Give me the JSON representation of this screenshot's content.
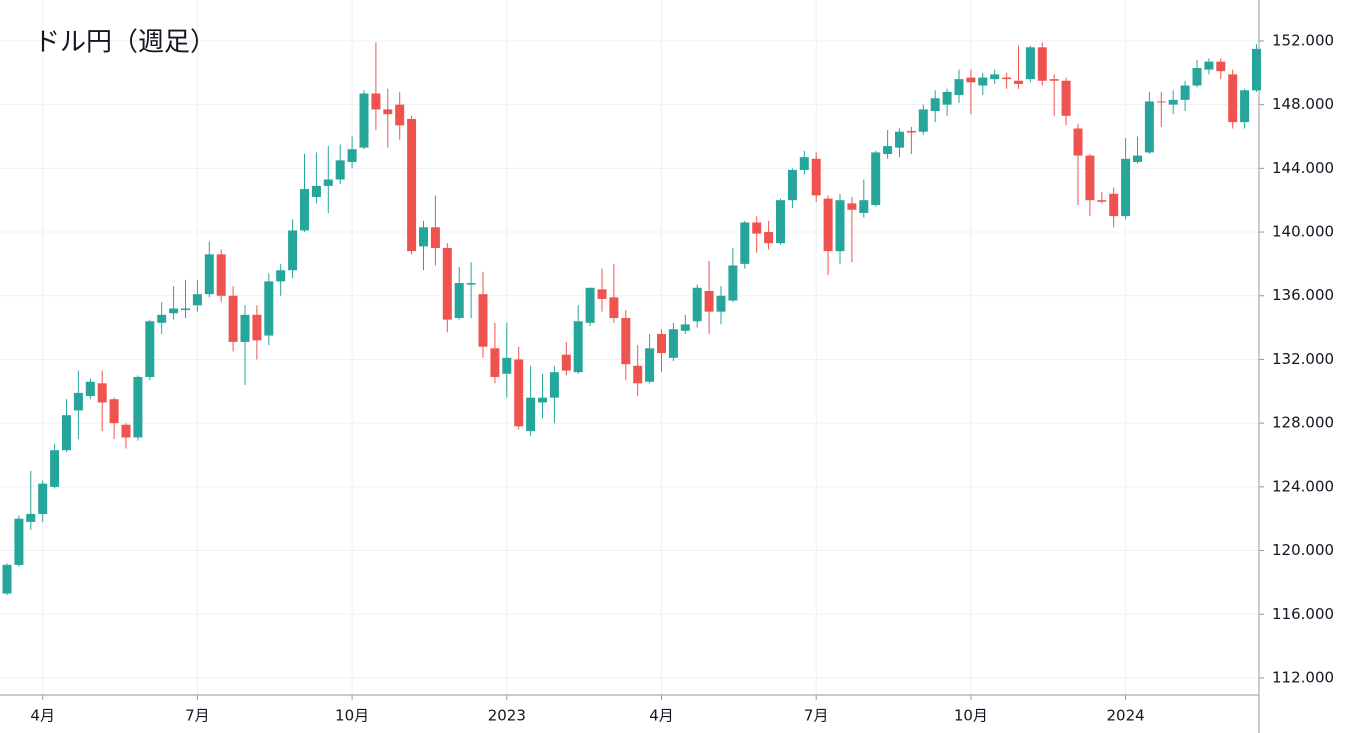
{
  "chart_data": {
    "type": "candlestick",
    "title": "ドル円（週足）",
    "categories": [
      null,
      null,
      null,
      "4月",
      null,
      null,
      null,
      null,
      null,
      null,
      null,
      null,
      null,
      null,
      null,
      null,
      "7月",
      null,
      null,
      null,
      null,
      null,
      null,
      null,
      null,
      null,
      null,
      null,
      null,
      "10月",
      null,
      null,
      null,
      null,
      null,
      null,
      null,
      null,
      null,
      null,
      null,
      null,
      "2023",
      null,
      null,
      null,
      null,
      null,
      null,
      null,
      null,
      null,
      null,
      null,
      null,
      "4月",
      null,
      null,
      null,
      null,
      null,
      null,
      null,
      null,
      null,
      null,
      null,
      null,
      "7月",
      null,
      null,
      null,
      null,
      null,
      null,
      null,
      null,
      null,
      null,
      null,
      null,
      "10月",
      null,
      null,
      null,
      null,
      null,
      null,
      null,
      null,
      null,
      null,
      null,
      null,
      "2024",
      null,
      null,
      null,
      null,
      null,
      null,
      null,
      null,
      null,
      null,
      null
    ],
    "open": [
      117.3,
      119.1,
      121.8,
      122.3,
      124.0,
      126.3,
      128.8,
      129.7,
      130.5,
      129.5,
      127.9,
      127.1,
      130.9,
      134.3,
      134.9,
      135.1,
      135.4,
      136.1,
      138.6,
      136.0,
      133.1,
      134.8,
      133.5,
      136.9,
      137.6,
      140.1,
      142.2,
      142.9,
      143.3,
      144.4,
      145.3,
      148.7,
      147.7,
      148.0,
      147.1,
      139.1,
      140.3,
      139.0,
      134.6,
      136.7,
      136.1,
      132.7,
      131.1,
      132.0,
      127.5,
      129.3,
      129.6,
      132.3,
      131.2,
      134.3,
      136.4,
      135.9,
      134.6,
      131.6,
      130.6,
      133.6,
      132.1,
      133.8,
      134.4,
      136.3,
      135.0,
      135.7,
      138.0,
      140.6,
      140.0,
      139.3,
      142.0,
      143.9,
      144.6,
      142.1,
      138.8,
      141.8,
      141.2,
      141.7,
      144.9,
      145.3,
      146.35,
      146.3,
      147.6,
      148.0,
      148.6,
      149.7,
      149.2,
      149.6,
      149.7,
      149.5,
      149.6,
      151.6,
      149.6,
      149.5,
      146.5,
      144.8,
      142.0,
      142.4,
      141.0,
      144.4,
      145.0,
      148.2,
      148.0,
      148.3,
      149.2,
      150.2,
      150.7,
      149.9,
      146.9,
      148.9
    ],
    "high": [
      119.2,
      122.2,
      125.0,
      124.4,
      126.7,
      129.5,
      131.3,
      130.8,
      131.3,
      129.6,
      128.0,
      131.0,
      134.5,
      135.6,
      136.6,
      137.0,
      137.0,
      139.4,
      138.9,
      136.6,
      135.4,
      135.4,
      137.4,
      138.0,
      140.8,
      144.9,
      145.0,
      145.4,
      145.5,
      146.0,
      148.9,
      151.9,
      149.0,
      148.8,
      147.3,
      140.7,
      142.3,
      139.3,
      137.8,
      138.1,
      137.5,
      134.3,
      134.3,
      132.8,
      131.6,
      131.1,
      131.6,
      133.1,
      135.4,
      136.5,
      137.7,
      138.0,
      135.1,
      132.9,
      133.6,
      133.9,
      134.3,
      134.8,
      136.7,
      138.2,
      136.6,
      139.0,
      140.7,
      141.0,
      140.7,
      142.1,
      144.0,
      145.1,
      145.0,
      142.3,
      142.4,
      142.2,
      143.3,
      145.1,
      146.4,
      146.5,
      146.6,
      148.0,
      148.9,
      149.0,
      150.2,
      150.2,
      150.0,
      150.2,
      150.0,
      151.7,
      151.7,
      151.9,
      149.9,
      149.7,
      146.8,
      144.9,
      142.5,
      142.8,
      145.9,
      146.0,
      148.8,
      148.8,
      148.9,
      149.5,
      150.8,
      150.9,
      150.9,
      150.2,
      149.0,
      151.8
    ],
    "low": [
      117.2,
      119.0,
      121.3,
      121.8,
      123.9,
      126.2,
      127.0,
      129.5,
      127.5,
      127.0,
      126.4,
      126.9,
      130.7,
      133.6,
      134.5,
      134.6,
      135.0,
      135.9,
      135.6,
      132.5,
      130.4,
      132.0,
      132.9,
      136.0,
      137.1,
      140.0,
      141.8,
      141.2,
      143.0,
      144.0,
      145.2,
      146.4,
      145.3,
      145.8,
      138.6,
      137.6,
      137.9,
      133.7,
      134.5,
      134.6,
      132.1,
      130.5,
      129.6,
      127.6,
      127.2,
      128.3,
      128.0,
      131.0,
      131.1,
      134.1,
      135.0,
      134.3,
      130.7,
      129.7,
      130.5,
      131.2,
      131.9,
      133.6,
      134.0,
      133.6,
      134.2,
      135.6,
      137.7,
      138.7,
      138.9,
      139.2,
      141.5,
      143.6,
      141.9,
      137.3,
      138.0,
      138.1,
      140.9,
      141.6,
      144.6,
      144.7,
      144.9,
      146.1,
      146.9,
      147.3,
      148.1,
      147.4,
      148.6,
      149.3,
      149.0,
      149.0,
      149.4,
      149.2,
      147.3,
      146.7,
      141.7,
      141.0,
      141.8,
      140.3,
      140.8,
      144.3,
      144.9,
      146.6,
      147.4,
      147.6,
      149.1,
      149.9,
      149.6,
      146.5,
      146.5,
      148.8
    ],
    "close": [
      119.1,
      122.0,
      122.3,
      124.2,
      126.3,
      128.5,
      129.9,
      130.6,
      129.3,
      128.0,
      127.1,
      130.9,
      134.4,
      134.8,
      135.2,
      135.2,
      136.1,
      138.6,
      136.0,
      133.1,
      134.8,
      133.2,
      136.9,
      137.6,
      140.1,
      142.7,
      142.9,
      143.3,
      144.5,
      145.2,
      148.7,
      147.7,
      147.4,
      146.7,
      138.8,
      140.3,
      139.0,
      134.5,
      136.8,
      136.8,
      132.8,
      130.9,
      132.1,
      127.8,
      129.6,
      129.6,
      131.2,
      131.3,
      134.4,
      136.5,
      135.8,
      134.6,
      131.7,
      130.5,
      132.7,
      132.4,
      133.9,
      134.2,
      136.5,
      135.0,
      136.0,
      137.9,
      140.6,
      139.9,
      139.3,
      142.0,
      143.9,
      144.7,
      142.3,
      138.8,
      142.0,
      141.4,
      142.0,
      145.0,
      145.4,
      146.3,
      146.25,
      147.7,
      148.4,
      148.8,
      149.6,
      149.4,
      149.7,
      149.9,
      149.6,
      149.3,
      151.6,
      149.5,
      149.5,
      147.3,
      144.8,
      142.0,
      141.9,
      141.0,
      144.6,
      144.8,
      148.2,
      148.15,
      148.3,
      149.2,
      150.3,
      150.7,
      150.1,
      146.9,
      148.9,
      151.5
    ],
    "up_color": "#26a69a",
    "down_color": "#ef5350",
    "ylim": [
      110.93,
      154.57
    ],
    "yticks": [
      {
        "value": 112,
        "label": "112.000"
      },
      {
        "value": 116,
        "label": "116.000"
      },
      {
        "value": 120,
        "label": "120.000"
      },
      {
        "value": 124,
        "label": "124.000"
      },
      {
        "value": 128,
        "label": "128.000"
      },
      {
        "value": 132,
        "label": "132.000"
      },
      {
        "value": 136,
        "label": "136.000"
      },
      {
        "value": 140,
        "label": "140.000"
      },
      {
        "value": 144,
        "label": "144.000"
      },
      {
        "value": 148,
        "label": "148.000"
      },
      {
        "value": 152,
        "label": "152.000"
      }
    ],
    "grid": true
  }
}
